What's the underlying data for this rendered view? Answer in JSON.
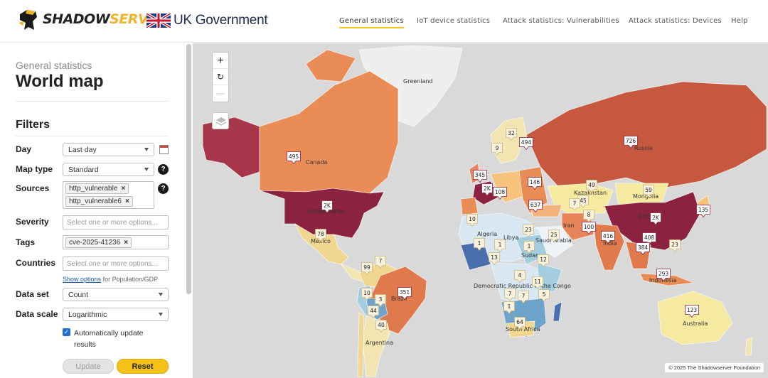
{
  "header": {
    "logo_text_1": "SHADOW",
    "logo_text_2": "SERVER",
    "gov_text": "UK Government",
    "nav": [
      {
        "label": "General statistics",
        "active": true
      },
      {
        "label": "IoT device statistics",
        "active": false
      },
      {
        "label": "Attack statistics: Vulnerabilities",
        "active": false
      },
      {
        "label": "Attack statistics: Devices",
        "active": false
      },
      {
        "label": "Help",
        "active": false
      }
    ]
  },
  "sidebar": {
    "breadcrumb": "General statistics",
    "page_title": "World map",
    "filters_heading": "Filters",
    "day": {
      "label": "Day",
      "value": "Last day"
    },
    "map_type": {
      "label": "Map type",
      "value": "Standard"
    },
    "sources": {
      "label": "Sources",
      "tags": [
        "http_vulnerable",
        "http_vulnerable6"
      ]
    },
    "severity": {
      "label": "Severity",
      "placeholder": "Select one or more options..."
    },
    "tags": {
      "label": "Tags",
      "tags": [
        "cve-2025-41236"
      ]
    },
    "countries": {
      "label": "Countries",
      "placeholder": "Select one or more options..."
    },
    "show_options": {
      "link": "Show options",
      "suffix": "for Population/GDP"
    },
    "data_set": {
      "label": "Data set",
      "value": "Count"
    },
    "data_scale": {
      "label": "Data scale",
      "value": "Logarithmic"
    },
    "auto_update": {
      "label": "Automatically update results",
      "checked": true
    },
    "update_button": "Update",
    "reset_button": "Reset"
  },
  "map": {
    "zoom_in": "+",
    "reset": "↻",
    "zoom_out": "—",
    "attribution": "© 2025 The Shadowserver Foundation",
    "country_labels": [
      "Greenland",
      "Canada",
      "United States",
      "Mexico",
      "Brazil",
      "Argentina",
      "Algeria",
      "Libya",
      "Sudan",
      "Saudi Arabia",
      "Democratic Republic of the Congo",
      "South Africa",
      "Kazakhstan",
      "Mongolia",
      "Russia",
      "China",
      "India",
      "Indonesia",
      "Australia",
      "Iran"
    ],
    "markers": [
      "495",
      "2K",
      "78",
      "99",
      "7",
      "10",
      "3",
      "44",
      "40",
      "351",
      "32",
      "494",
      "9",
      "345",
      "2K",
      "108",
      "146",
      "637",
      "49",
      "59",
      "726",
      "2K",
      "135",
      "416",
      "408",
      "384",
      "23",
      "293",
      "123",
      "45",
      "7",
      "8",
      "100",
      "10",
      "1",
      "1",
      "13",
      "23",
      "1",
      "12",
      "25",
      "4",
      "11",
      "7",
      "7",
      "5",
      "1",
      "64"
    ]
  }
}
